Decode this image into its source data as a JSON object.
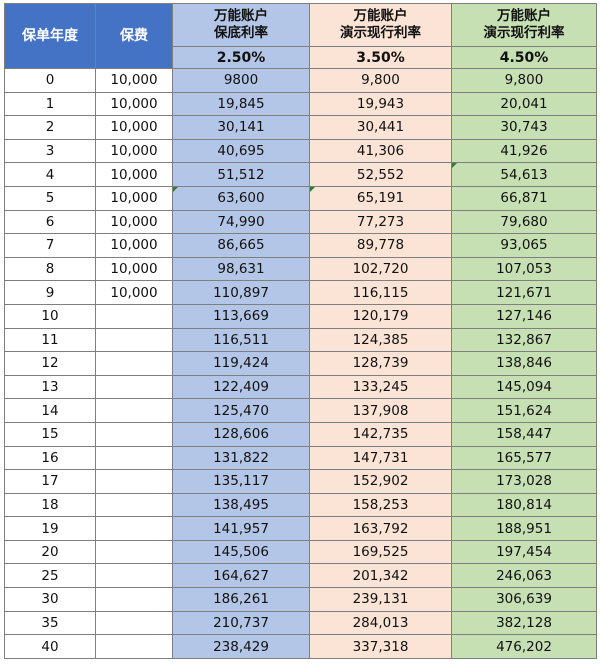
{
  "header": {
    "year_label": "保单年度",
    "premium_label": "保费",
    "guaranteed_title": "万能账户\n保底利率",
    "demo_mid_title": "万能账户\n演示现行利率",
    "demo_high_title": "万能账户\n演示现行利率",
    "guaranteed_rate": "2.50%",
    "demo_mid_rate": "3.50%",
    "demo_high_rate": "4.50%"
  },
  "rows": [
    {
      "year": "0",
      "premium": "10,000",
      "guaranteed": "9800",
      "mid": "9,800",
      "high": "9,800"
    },
    {
      "year": "1",
      "premium": "10,000",
      "guaranteed": "19,845",
      "mid": "19,943",
      "high": "20,041"
    },
    {
      "year": "2",
      "premium": "10,000",
      "guaranteed": "30,141",
      "mid": "30,441",
      "high": "30,743"
    },
    {
      "year": "3",
      "premium": "10,000",
      "guaranteed": "40,695",
      "mid": "41,306",
      "high": "41,926"
    },
    {
      "year": "4",
      "premium": "10,000",
      "guaranteed": "51,512",
      "mid": "52,552",
      "high": "54,613"
    },
    {
      "year": "5",
      "premium": "10,000",
      "guaranteed": "63,600",
      "mid": "65,191",
      "high": "66,871"
    },
    {
      "year": "6",
      "premium": "10,000",
      "guaranteed": "74,990",
      "mid": "77,273",
      "high": "79,680"
    },
    {
      "year": "7",
      "premium": "10,000",
      "guaranteed": "86,665",
      "mid": "89,778",
      "high": "93,065"
    },
    {
      "year": "8",
      "premium": "10,000",
      "guaranteed": "98,631",
      "mid": "102,720",
      "high": "107,053"
    },
    {
      "year": "9",
      "premium": "10,000",
      "guaranteed": "110,897",
      "mid": "116,115",
      "high": "121,671"
    },
    {
      "year": "10",
      "premium": "",
      "guaranteed": "113,669",
      "mid": "120,179",
      "high": "127,146"
    },
    {
      "year": "11",
      "premium": "",
      "guaranteed": "116,511",
      "mid": "124,385",
      "high": "132,867"
    },
    {
      "year": "12",
      "premium": "",
      "guaranteed": "119,424",
      "mid": "128,739",
      "high": "138,846"
    },
    {
      "year": "13",
      "premium": "",
      "guaranteed": "122,409",
      "mid": "133,245",
      "high": "145,094"
    },
    {
      "year": "14",
      "premium": "",
      "guaranteed": "125,470",
      "mid": "137,908",
      "high": "151,624"
    },
    {
      "year": "15",
      "premium": "",
      "guaranteed": "128,606",
      "mid": "142,735",
      "high": "158,447"
    },
    {
      "year": "16",
      "premium": "",
      "guaranteed": "131,822",
      "mid": "147,731",
      "high": "165,577"
    },
    {
      "year": "17",
      "premium": "",
      "guaranteed": "135,117",
      "mid": "152,902",
      "high": "173,028"
    },
    {
      "year": "18",
      "premium": "",
      "guaranteed": "138,495",
      "mid": "158,253",
      "high": "180,814"
    },
    {
      "year": "19",
      "premium": "",
      "guaranteed": "141,957",
      "mid": "163,792",
      "high": "188,951"
    },
    {
      "year": "20",
      "premium": "",
      "guaranteed": "145,506",
      "mid": "169,525",
      "high": "197,454"
    },
    {
      "year": "25",
      "premium": "",
      "guaranteed": "164,627",
      "mid": "201,342",
      "high": "246,063"
    },
    {
      "year": "30",
      "premium": "",
      "guaranteed": "186,261",
      "mid": "239,131",
      "high": "306,639"
    },
    {
      "year": "35",
      "premium": "",
      "guaranteed": "210,737",
      "mid": "284,013",
      "high": "382,128"
    },
    {
      "year": "40",
      "premium": "",
      "guaranteed": "238,429",
      "mid": "337,318",
      "high": "476,202"
    }
  ],
  "colors": {
    "header_blue": "#4472c4",
    "guaranteed_fill": "#b4c6e7",
    "demo_mid_fill": "#fbe4d5",
    "demo_high_fill": "#c6e0b4",
    "grid_line": "#7f7f7f"
  }
}
